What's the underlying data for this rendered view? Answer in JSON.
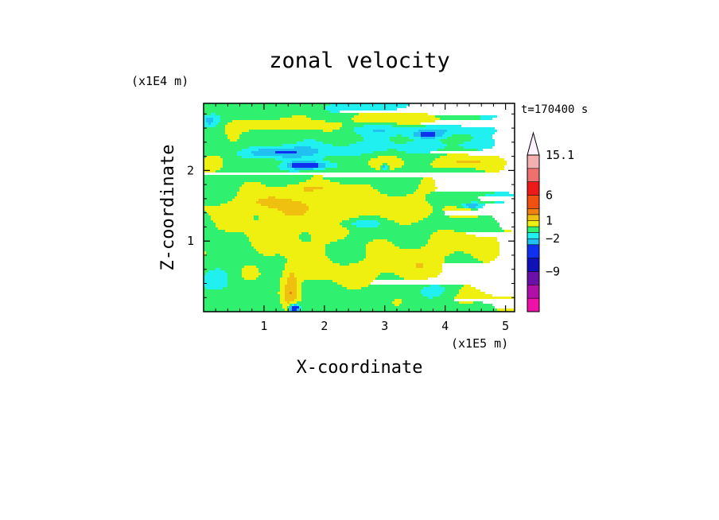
{
  "chart_data": {
    "type": "heatmap",
    "title": "zonal velocity",
    "xlabel": "X-coordinate",
    "ylabel": "Z-coordinate",
    "x_scale_label": "(x1E5 m)",
    "y_scale_label": "(x1E4 m)",
    "time_label": "t=170400 s",
    "xlim": [
      0,
      5.15
    ],
    "ylim": [
      0,
      2.95
    ],
    "x_ticks": [
      1,
      2,
      3,
      4,
      5
    ],
    "y_ticks": [
      1,
      2
    ],
    "x_tick_labels": [
      "1",
      "2",
      "3",
      "4",
      "5"
    ],
    "y_tick_labels": [
      "1",
      "2"
    ],
    "colorbar": {
      "levels": [
        -15,
        -12,
        -9,
        -6,
        -3,
        -2,
        -1,
        0,
        1,
        2,
        3,
        6,
        9,
        12,
        15.1
      ],
      "colors": [
        "#ee10a8",
        "#b010a8",
        "#6a10a8",
        "#1010b8",
        "#1030f0",
        "#20c0f0",
        "#20f0f0",
        "#30f070",
        "#f0f010",
        "#f0c010",
        "#f08010",
        "#f05010",
        "#ee1a1a",
        "#f07070",
        "#f4b0b0"
      ],
      "extend_max_color": "#fdf0ff",
      "labels": [
        {
          "value": 15.1,
          "text": "15.1"
        },
        {
          "value": 6,
          "text": "6"
        },
        {
          "value": 1,
          "text": "1"
        },
        {
          "value": -2,
          "text": "−2"
        },
        {
          "value": -9,
          "text": "−9"
        }
      ]
    },
    "features": [
      {
        "x": 2.6,
        "z": 1.5,
        "a": 1.2,
        "sx": 2.8,
        "sz": 0.22
      },
      {
        "x": 1.4,
        "z": 1.1,
        "a": 1.0,
        "sx": 0.9,
        "sz": 0.35
      },
      {
        "x": 3.5,
        "z": 0.75,
        "a": 1.0,
        "sx": 0.7,
        "sz": 0.25
      },
      {
        "x": 2.2,
        "z": 0.55,
        "a": 0.9,
        "sx": 1.3,
        "sz": 0.18
      },
      {
        "x": 4.4,
        "z": 1.05,
        "a": 0.9,
        "sx": 0.6,
        "sz": 0.25
      },
      {
        "x": 3.0,
        "z": 2.15,
        "a": 0.7,
        "sx": 0.7,
        "sz": 0.15
      },
      {
        "x": 0.6,
        "z": 2.2,
        "a": 0.7,
        "sx": 0.6,
        "sz": 0.2
      },
      {
        "x": 1.0,
        "z": 2.65,
        "a": 1.5,
        "sx": 0.5,
        "sz": 0.09
      },
      {
        "x": 2.05,
        "z": 2.62,
        "a": 1.4,
        "sx": 0.3,
        "sz": 0.08
      },
      {
        "x": 4.35,
        "z": 2.12,
        "a": 1.7,
        "sx": 0.5,
        "sz": 0.1
      },
      {
        "x": 1.1,
        "z": 1.55,
        "a": 1.4,
        "sx": 0.25,
        "sz": 0.08
      },
      {
        "x": 1.8,
        "z": 1.75,
        "a": 1.3,
        "sx": 0.6,
        "sz": 0.08
      },
      {
        "x": 3.45,
        "z": 2.72,
        "a": 1.2,
        "sx": 1.1,
        "sz": 0.1
      },
      {
        "x": 1.45,
        "z": 0.25,
        "a": 2.0,
        "sx": 0.12,
        "sz": 0.35
      },
      {
        "x": 4.5,
        "z": 0.2,
        "a": 0.7,
        "sx": 0.8,
        "sz": 0.15
      },
      {
        "x": 1.2,
        "z": 2.25,
        "a": -3.2,
        "sx": 0.55,
        "sz": 0.09
      },
      {
        "x": 1.7,
        "z": 2.07,
        "a": -4.0,
        "sx": 0.35,
        "sz": 0.06
      },
      {
        "x": 2.6,
        "z": 2.3,
        "a": -1.2,
        "sx": 0.9,
        "sz": 0.12
      },
      {
        "x": 3.5,
        "z": 2.58,
        "a": -1.6,
        "sx": 1.2,
        "sz": 0.08
      },
      {
        "x": 3.7,
        "z": 2.5,
        "a": -2.6,
        "sx": 0.25,
        "sz": 0.05
      },
      {
        "x": 4.6,
        "z": 2.75,
        "a": -1.4,
        "sx": 0.3,
        "sz": 0.06
      },
      {
        "x": 0.1,
        "z": 2.7,
        "a": -2.0,
        "sx": 0.15,
        "sz": 0.08
      },
      {
        "x": 2.7,
        "z": 2.9,
        "a": -1.5,
        "sx": 0.5,
        "sz": 0.06
      },
      {
        "x": 4.6,
        "z": 1.6,
        "a": -1.5,
        "sx": 0.7,
        "sz": 0.08
      },
      {
        "x": 4.45,
        "z": 1.5,
        "a": -3.5,
        "sx": 0.18,
        "sz": 0.04
      },
      {
        "x": 2.6,
        "z": 1.25,
        "a": -1.2,
        "sx": 0.4,
        "sz": 0.06
      },
      {
        "x": 3.0,
        "z": 2.05,
        "a": -2.8,
        "sx": 0.05,
        "sz": 0.05
      },
      {
        "x": 4.1,
        "z": 2.35,
        "a": -0.9,
        "sx": 0.6,
        "sz": 0.1
      },
      {
        "x": 1.5,
        "z": 0.05,
        "a": -6.0,
        "sx": 0.08,
        "sz": 0.06
      },
      {
        "x": 4.2,
        "z": 1.2,
        "a": -0.8,
        "sx": 0.4,
        "sz": 0.1
      },
      {
        "x": 0.3,
        "z": 0.5,
        "a": -0.7,
        "sx": 0.3,
        "sz": 0.2
      },
      {
        "x": 3.9,
        "z": 0.3,
        "a": -0.8,
        "sx": 0.4,
        "sz": 0.12
      }
    ],
    "background_value": -0.5,
    "wave_amplitude": 0.5
  }
}
